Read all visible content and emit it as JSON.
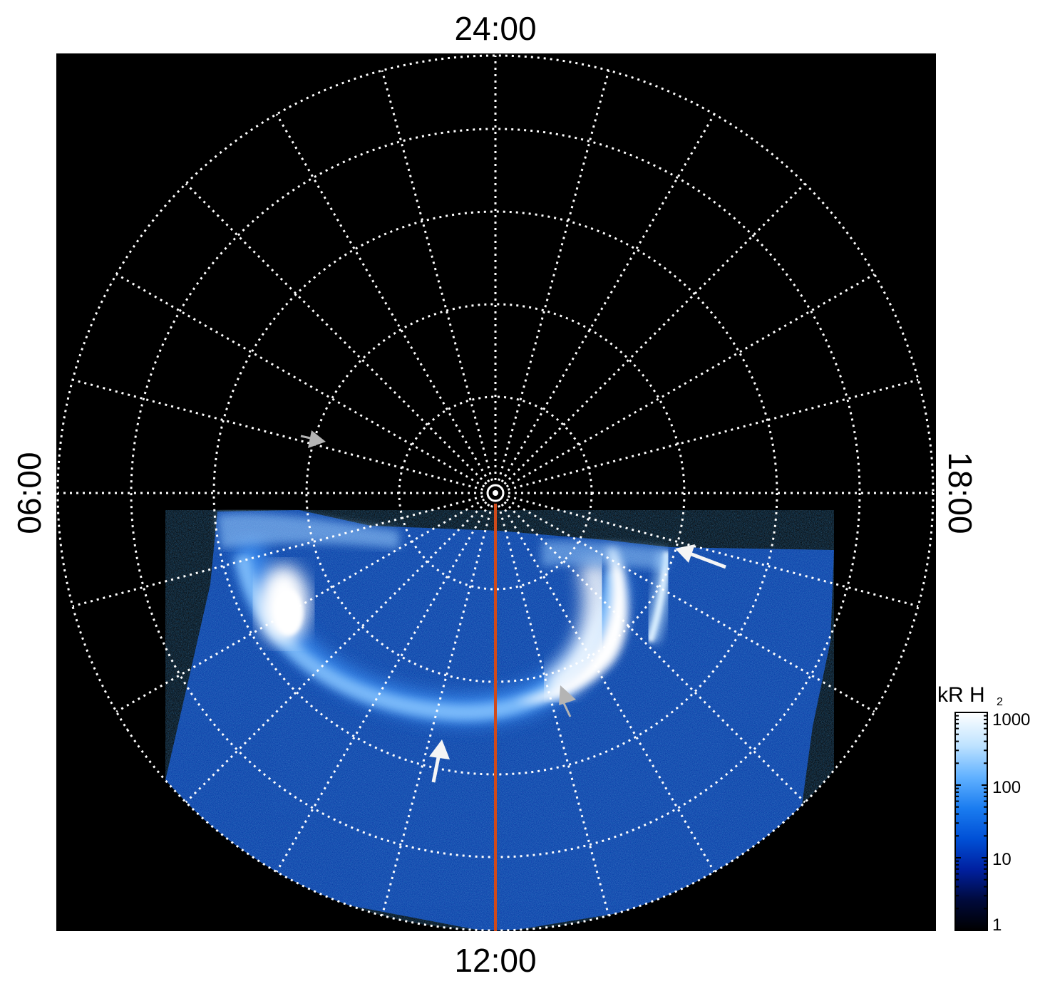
{
  "local_time_labels": {
    "top": "24:00",
    "bottom": "12:00",
    "left": "06:00",
    "right": "18:00"
  },
  "colorbar": {
    "title": "kR H",
    "title_subscript": "2",
    "tick_labels": [
      "1000",
      "100",
      "10",
      "1"
    ],
    "gradient": [
      "#000000",
      "#000a3c",
      "#0020a0",
      "#0050d6",
      "#1a7cf0",
      "#5fb0ff",
      "#bfe3ff",
      "#ffffff"
    ]
  },
  "colors": {
    "background": "#000000",
    "grid": "#ffffff",
    "meridian_line": "#d04a1a",
    "arrow_white": "#f5f5f5",
    "arrow_grey": "#b4b4b4"
  },
  "arrow_icons": [
    "white-arrow-icon",
    "grey-arrow-icon"
  ]
}
